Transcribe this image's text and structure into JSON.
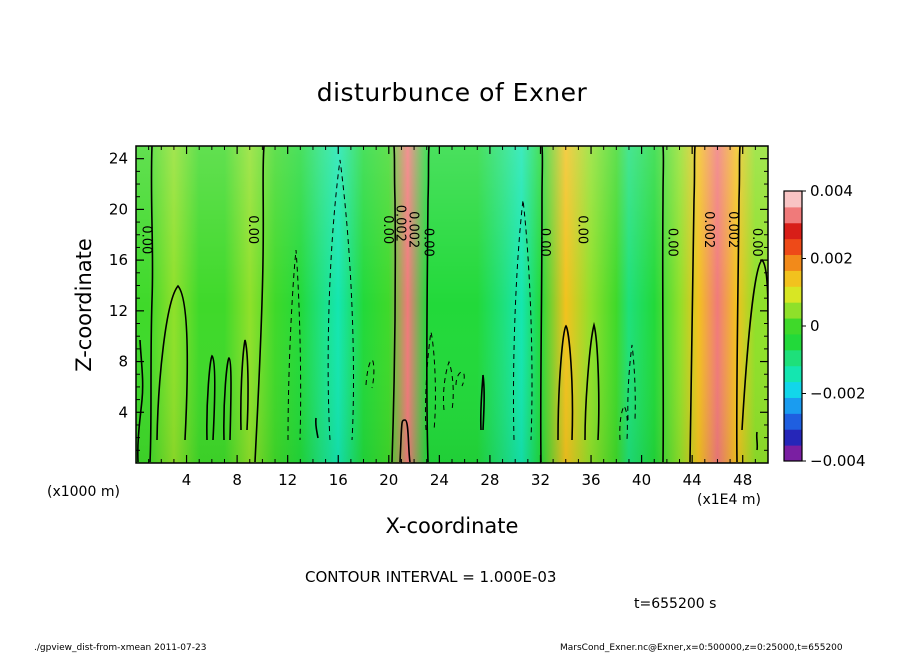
{
  "chart_data": {
    "type": "heatmap",
    "title": "disturbunce of Exner",
    "xlabel": "X-coordinate",
    "ylabel": "Z-coordinate",
    "x_unit_left": "(x1000 m)",
    "x_unit_right": "(x1E4 m)",
    "xlim": [
      0,
      50
    ],
    "ylim": [
      0,
      25
    ],
    "x_ticks": [
      4,
      8,
      12,
      16,
      20,
      24,
      28,
      32,
      36,
      40,
      44,
      48
    ],
    "y_ticks": [
      4,
      8,
      12,
      16,
      20,
      24
    ],
    "colorbar": {
      "min": -0.004,
      "max": 0.004,
      "tick_labels": [
        "0.004",
        "0.002",
        "0",
        "−0.002",
        "−0.004"
      ],
      "tick_values": [
        0.004,
        0.002,
        0,
        -0.002,
        -0.004
      ],
      "colors": [
        "#7a1fa2",
        "#2626b8",
        "#1f5fe0",
        "#1a9cf0",
        "#12d6ea",
        "#14e6b0",
        "#1ee07a",
        "#22d93a",
        "#3fd92a",
        "#8fe02a",
        "#d8e624",
        "#f2c21e",
        "#f28a1a",
        "#ee4a18",
        "#d81e18",
        "#f07a7a",
        "#f8c4c4"
      ]
    },
    "columns": [
      {
        "x": 1,
        "v": 0.0001
      },
      {
        "x": 3,
        "v": 0.0006
      },
      {
        "x": 5,
        "v": 0.0002
      },
      {
        "x": 7,
        "v": 0.0001
      },
      {
        "x": 9,
        "v": 0.0007
      },
      {
        "x": 11,
        "v": -0.0002
      },
      {
        "x": 13,
        "v": -0.0007
      },
      {
        "x": 14.5,
        "v": -0.0009
      },
      {
        "x": 16,
        "v": -0.0013
      },
      {
        "x": 18,
        "v": -0.0005
      },
      {
        "x": 20,
        "v": -0.0002
      },
      {
        "x": 21.5,
        "v": 0.0034
      },
      {
        "x": 23,
        "v": -0.0004
      },
      {
        "x": 25,
        "v": -0.0006
      },
      {
        "x": 27,
        "v": -0.0004
      },
      {
        "x": 29,
        "v": -0.0008
      },
      {
        "x": 30.5,
        "v": -0.0015
      },
      {
        "x": 32,
        "v": -0.0003
      },
      {
        "x": 34,
        "v": 0.0016
      },
      {
        "x": 36,
        "v": 0.0003
      },
      {
        "x": 38,
        "v": -0.0002
      },
      {
        "x": 39,
        "v": -0.0008
      },
      {
        "x": 41,
        "v": -0.0003
      },
      {
        "x": 43,
        "v": 0.0004
      },
      {
        "x": 44.5,
        "v": 0.0013
      },
      {
        "x": 46,
        "v": 0.0034
      },
      {
        "x": 47.5,
        "v": 0.0015
      },
      {
        "x": 49,
        "v": 0.0007
      }
    ],
    "contour_labels": [
      {
        "x": 0.8,
        "y": 17.6,
        "text": "0.00"
      },
      {
        "x": 9.2,
        "y": 18.4,
        "text": "0.00"
      },
      {
        "x": 19.9,
        "y": 18.4,
        "text": "0.00"
      },
      {
        "x": 20.9,
        "y": 18.9,
        "text": "0.002"
      },
      {
        "x": 21.9,
        "y": 18.4,
        "text": "0.002"
      },
      {
        "x": 23.1,
        "y": 17.4,
        "text": "0.00"
      },
      {
        "x": 32.3,
        "y": 17.4,
        "text": "0.00"
      },
      {
        "x": 35.3,
        "y": 18.4,
        "text": "0.00"
      },
      {
        "x": 42.4,
        "y": 17.4,
        "text": "0.00"
      },
      {
        "x": 45.3,
        "y": 18.4,
        "text": "0.002"
      },
      {
        "x": 47.2,
        "y": 18.4,
        "text": "0.002"
      },
      {
        "x": 49.1,
        "y": 17.4,
        "text": "0.00"
      }
    ],
    "annotations": {
      "contour_interval": "CONTOUR INTERVAL = 1.000E-03",
      "time": "t=655200 s"
    }
  },
  "footer": {
    "left": "./gpview_dist-from-xmean  2011-07-23",
    "right": "MarsCond_Exner.nc@Exner,x=0:500000,z=0:25000,t=655200"
  }
}
